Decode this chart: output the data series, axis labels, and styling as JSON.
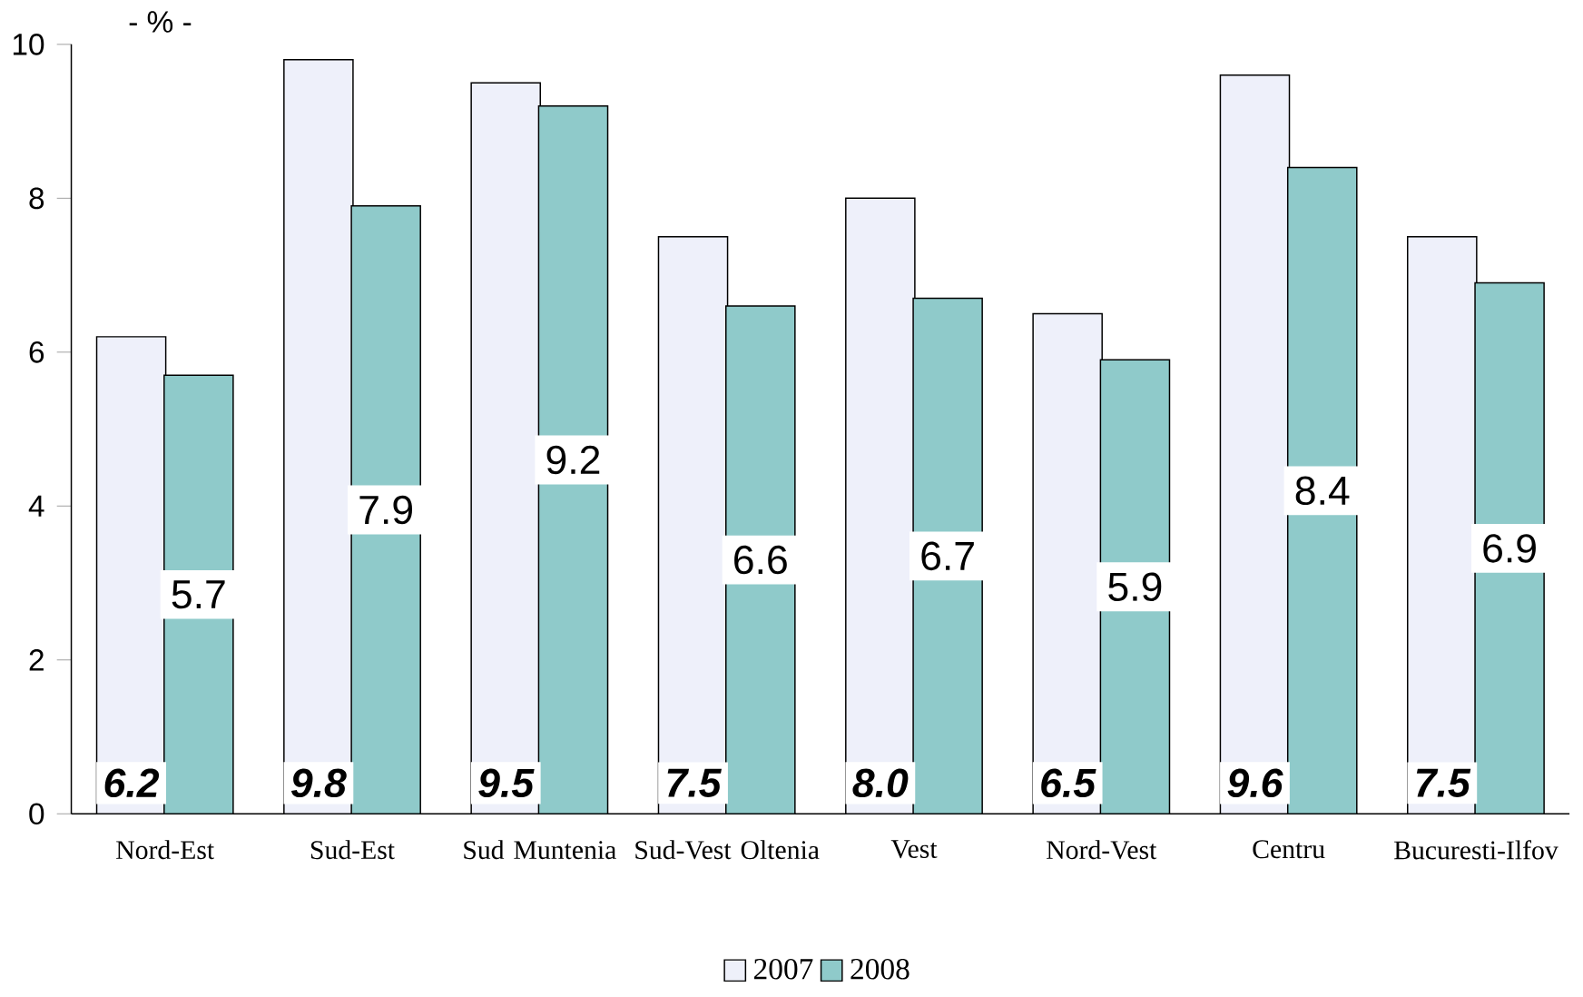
{
  "chart_data": {
    "type": "bar",
    "ylabel": "- % -",
    "categories": [
      "Nord-Est",
      "Sud-Est",
      "Sud Muntenia",
      "Sud-Vest Oltenia",
      "Vest",
      "Nord-Vest",
      "Centru",
      "Bucuresti-Ilfov"
    ],
    "series": [
      {
        "name": "2007",
        "color": "#eef0fa",
        "values": [
          6.2,
          9.8,
          9.5,
          7.5,
          8.0,
          6.5,
          9.6,
          7.5
        ],
        "value_labels": [
          "6.2",
          "9.8",
          "9.5",
          "7.5",
          "8.0",
          "6.5",
          "9.6",
          "7.5"
        ]
      },
      {
        "name": "2008",
        "color": "#8fcaca",
        "values": [
          5.7,
          7.9,
          9.2,
          6.6,
          6.7,
          5.9,
          8.4,
          6.9
        ],
        "value_labels": [
          "5.7",
          "7.9",
          "9.2",
          "6.6",
          "6.7",
          "5.9",
          "8.4",
          "6.9"
        ]
      }
    ],
    "ylim": [
      0,
      10
    ],
    "yticks": [
      0,
      2,
      4,
      6,
      8,
      10
    ],
    "grid": false,
    "legend": "bottom"
  }
}
